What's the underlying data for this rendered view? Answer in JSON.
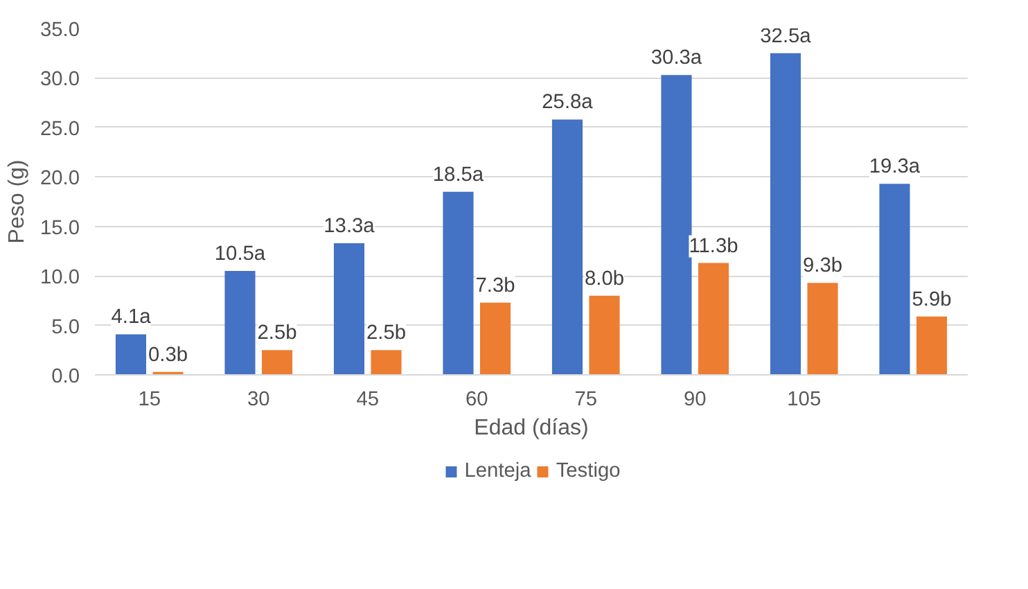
{
  "chart_data": {
    "type": "bar",
    "xlabel": "Edad (días)",
    "ylabel": "Peso (g)",
    "categories": [
      "15",
      "30",
      "45",
      "60",
      "75",
      "90",
      "105",
      null
    ],
    "series": [
      {
        "name": "Lenteja",
        "color": "#4472c4",
        "values": [
          4.1,
          10.5,
          13.3,
          18.5,
          25.8,
          30.3,
          32.5,
          19.3
        ],
        "value_labels": [
          "4.1a",
          "10.5a",
          "13.3a",
          "18.5a",
          "25.8a",
          "30.3a",
          "32.5a",
          "19.3a"
        ]
      },
      {
        "name": "Testigo",
        "color": "#ed7d31",
        "values": [
          0.3,
          2.5,
          2.5,
          7.3,
          8.0,
          11.3,
          9.3,
          5.9
        ],
        "value_labels": [
          "0.3b",
          "2.5b",
          "2.5b",
          "7.3b",
          "8.0b",
          "11.3b",
          "9.3b",
          "5.9b"
        ]
      }
    ],
    "ylim": [
      0,
      35
    ],
    "yticks": [
      {
        "value": 0,
        "label": "0.0"
      },
      {
        "value": 5,
        "label": "5.0"
      },
      {
        "value": 10,
        "label": "10.0"
      },
      {
        "value": 15,
        "label": "15.0"
      },
      {
        "value": 20,
        "label": "20.0"
      },
      {
        "value": 25,
        "label": "25.0"
      },
      {
        "value": 30,
        "label": "30.0"
      },
      {
        "value": 35,
        "label": "35.0"
      }
    ],
    "grid": "y",
    "legend": "bottom"
  }
}
